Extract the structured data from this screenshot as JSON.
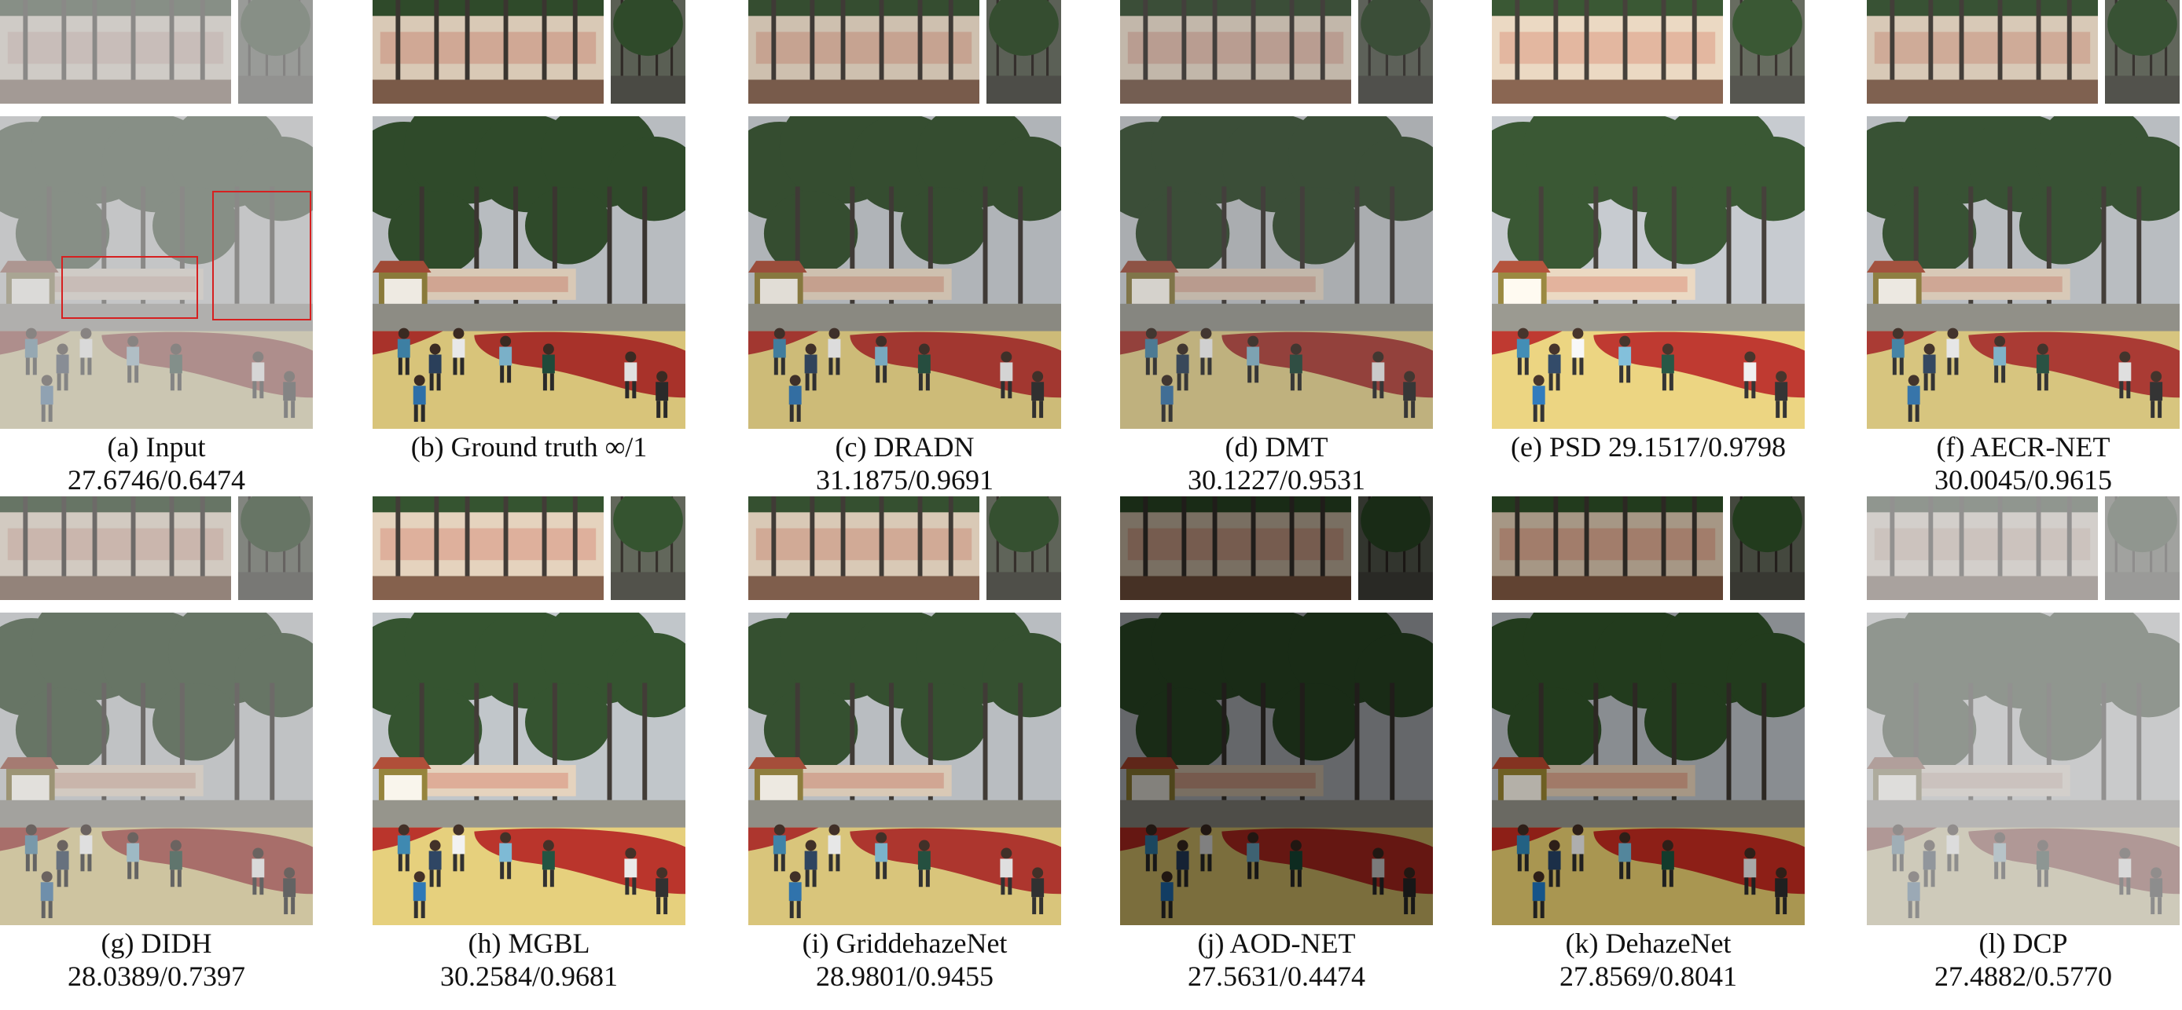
{
  "figure": {
    "panels": [
      {
        "label": "(a) Input",
        "metric": "27.6746/0.6474",
        "style": {
          "haze": 0.55,
          "bright": 1.0,
          "sat": 0.6
        },
        "show_boxes": true
      },
      {
        "label": "(b) Ground truth ∞/1",
        "metric": "",
        "style": {
          "haze": 0.0,
          "bright": 1.0,
          "sat": 1.0
        },
        "show_boxes": false
      },
      {
        "label": "(c) DRADN",
        "metric": "31.1875/0.9691",
        "style": {
          "haze": 0.05,
          "bright": 0.95,
          "sat": 1.0
        },
        "show_boxes": false
      },
      {
        "label": "(d) DMT",
        "metric": "30.1227/0.9531",
        "style": {
          "haze": 0.1,
          "bright": 0.9,
          "sat": 0.85
        },
        "show_boxes": false
      },
      {
        "label": "(e) PSD 29.1517/0.9798",
        "metric": "",
        "style": {
          "haze": 0.05,
          "bright": 1.08,
          "sat": 1.1
        },
        "show_boxes": false
      },
      {
        "label": "(f) AECR-NET",
        "metric": "30.0045/0.9615",
        "style": {
          "haze": 0.06,
          "bright": 1.0,
          "sat": 1.0
        },
        "show_boxes": false
      },
      {
        "label": "(g) DIDH",
        "metric": "28.0389/0.7397",
        "style": {
          "haze": 0.35,
          "bright": 1.0,
          "sat": 0.75
        },
        "show_boxes": false
      },
      {
        "label": "(h) MGBL",
        "metric": "30.2584/0.9681",
        "style": {
          "haze": 0.03,
          "bright": 1.05,
          "sat": 1.1
        },
        "show_boxes": false
      },
      {
        "label": "(i) GriddehazeNet",
        "metric": "28.9801/0.9455",
        "style": {
          "haze": 0.04,
          "bright": 1.0,
          "sat": 1.05
        },
        "show_boxes": false
      },
      {
        "label": "(j) AOD-NET",
        "metric": "27.5631/0.4474",
        "style": {
          "haze": 0.0,
          "bright": 0.55,
          "sat": 1.2
        },
        "show_boxes": false
      },
      {
        "label": "(k) DehazeNet",
        "metric": "27.8569/0.8041",
        "style": {
          "haze": 0.0,
          "bright": 0.75,
          "sat": 1.25
        },
        "show_boxes": false
      },
      {
        "label": "(l) DCP",
        "metric": "27.4882/0.5770",
        "style": {
          "haze": 0.6,
          "bright": 1.05,
          "sat": 0.5
        },
        "show_boxes": false
      }
    ],
    "colors": {
      "box": "#d62020",
      "sky": "#b8bcc0",
      "foliage": "#2f4a2a",
      "court_red": "#a8322a",
      "court_yellow": "#d8c47a",
      "wall": "#d9c9b6"
    }
  }
}
